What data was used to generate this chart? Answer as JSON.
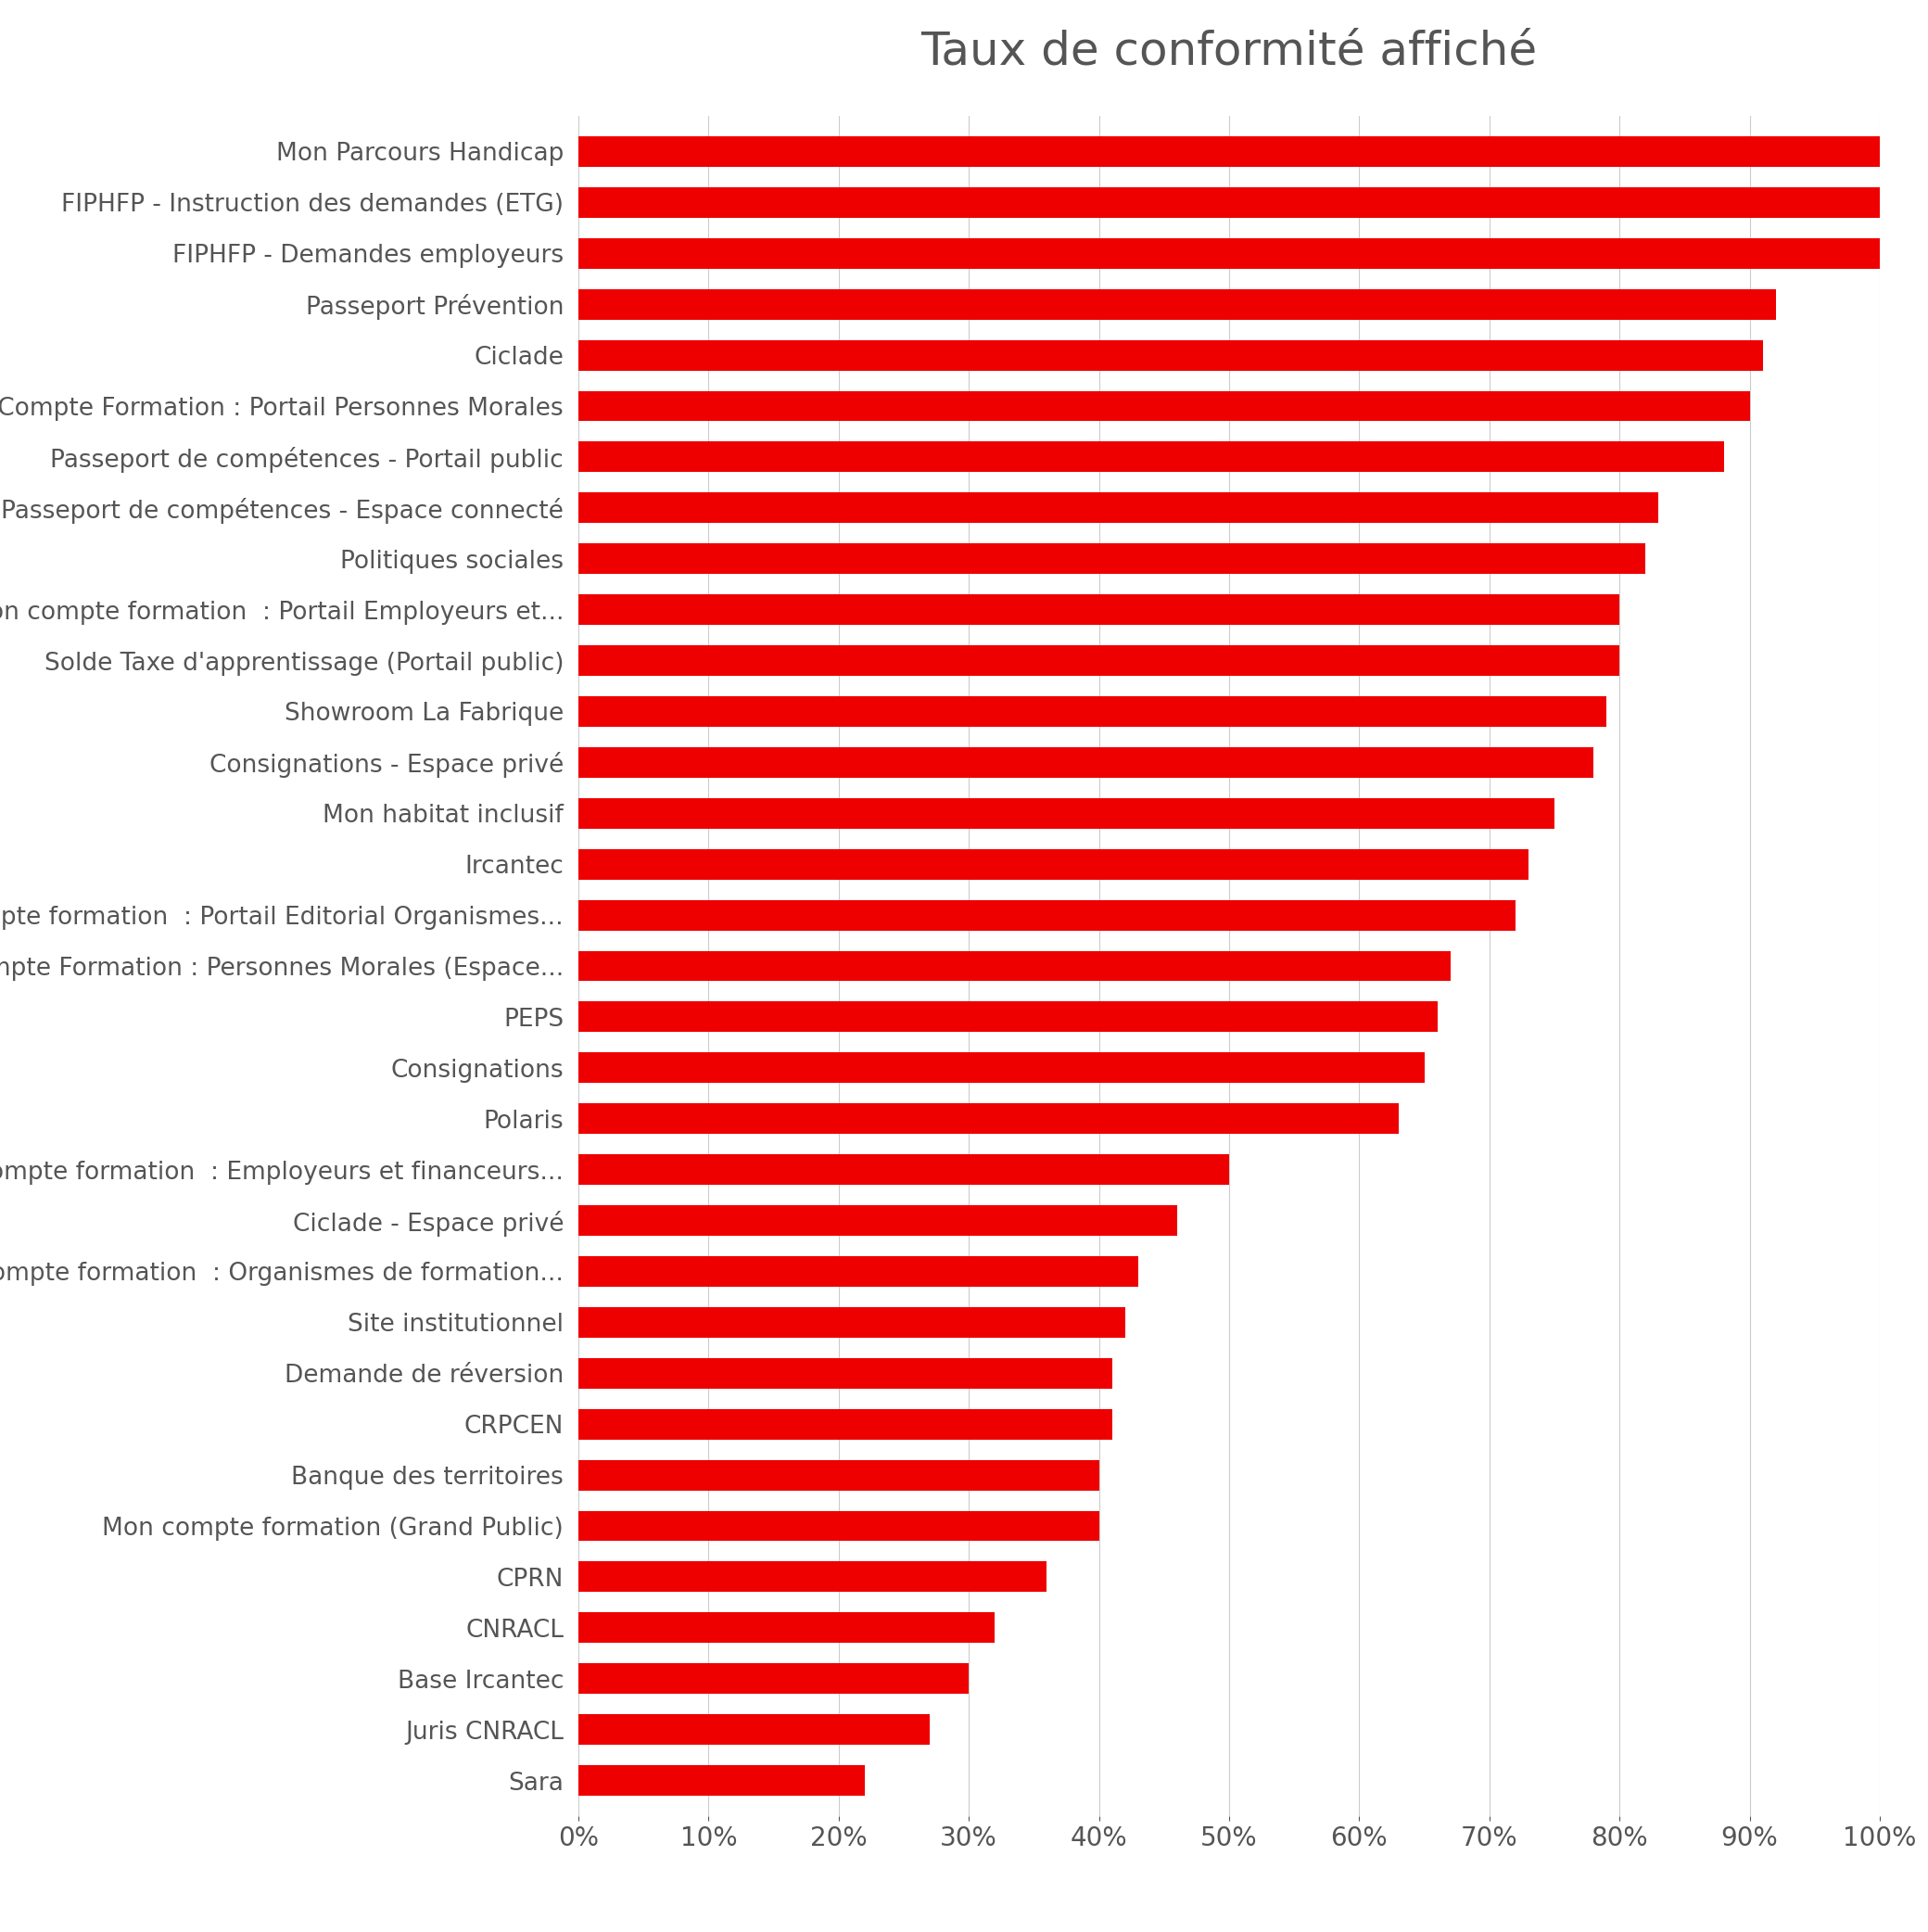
{
  "title": "Taux de conformité affiché",
  "bar_color": "#ee0000",
  "background_color": "#ffffff",
  "categories": [
    "Mon Parcours Handicap",
    "FIPHFP - Instruction des demandes (ETG)",
    "FIPHFP - Demandes employeurs",
    "Passeport Prévention",
    "Ciclade",
    "Mon Compte Formation : Portail Personnes Morales",
    "Passeport de compétences - Portail public",
    "Passeport de compétences - Espace connecté",
    "Politiques sociales",
    "Mon compte formation  : Portail Employeurs et...",
    "Solde Taxe d'apprentissage (Portail public)",
    "Showroom La Fabrique",
    "Consignations - Espace privé",
    "Mon habitat inclusif",
    "Ircantec",
    "Mon compte formation  : Portail Editorial Organismes...",
    "Mon Compte Formation : Personnes Morales (Espace...",
    "PEPS",
    "Consignations",
    "Polaris",
    "Mon compte formation  : Employeurs et financeurs...",
    "Ciclade - Espace privé",
    "Mon compte formation  : Organismes de formation...",
    "Site institutionnel",
    "Demande de réversion",
    "CRPCEN",
    "Banque des territoires",
    "Mon compte formation (Grand Public)",
    "CPRN",
    "CNRACL",
    "Base Ircantec",
    "Juris CNRACL",
    "Sara"
  ],
  "values": [
    100,
    100,
    100,
    92,
    91,
    90,
    88,
    83,
    82,
    80,
    80,
    79,
    78,
    75,
    73,
    72,
    67,
    66,
    65,
    63,
    50,
    46,
    43,
    42,
    41,
    41,
    40,
    40,
    36,
    32,
    30,
    27,
    22
  ],
  "xlim": [
    0,
    100
  ],
  "xtick_values": [
    0,
    10,
    20,
    30,
    40,
    50,
    60,
    70,
    80,
    90,
    100
  ],
  "grid_color": "#cccccc",
  "label_color": "#555555",
  "title_fontsize": 36,
  "label_fontsize": 19,
  "tick_fontsize": 20
}
